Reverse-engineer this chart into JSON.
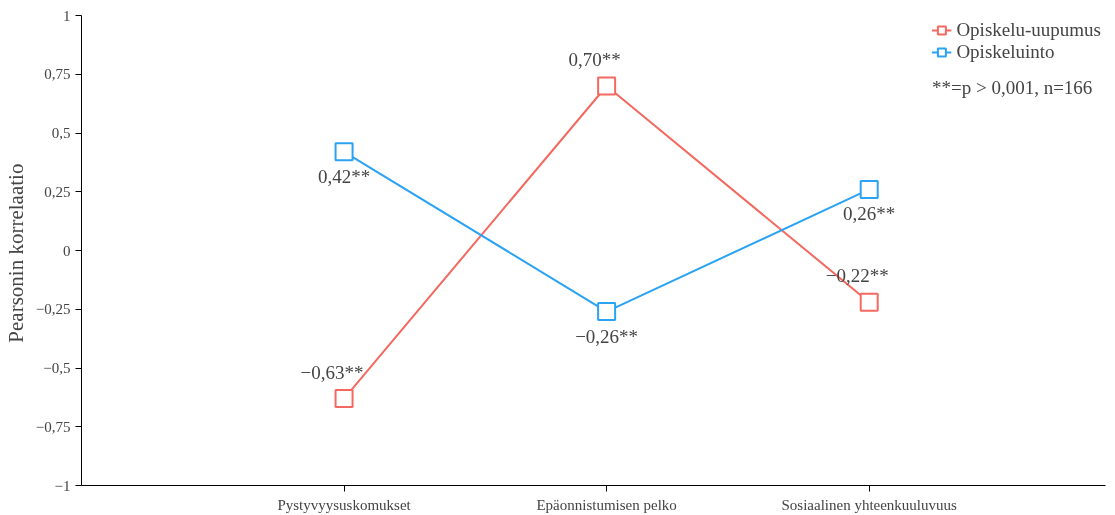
{
  "chart_data": {
    "type": "line",
    "ylabel": "Pearsonin  korrelaatio",
    "categories": [
      "Pystyvyysuskomukset",
      "Epäonnistumisen pelko",
      "Sosiaalinen yhteenkuuluvuus"
    ],
    "series": [
      {
        "name": "Opiskelu-uupumus",
        "color": "#f4695f",
        "values": [
          -0.63,
          0.7,
          -0.22
        ],
        "value_labels": [
          "−0,63**",
          "0,70**",
          "−0,22**"
        ]
      },
      {
        "name": "Opiskeluinto",
        "color": "#2aa3f2",
        "values": [
          0.42,
          -0.26,
          0.26
        ],
        "value_labels": [
          "0,42**",
          "−0,26**",
          "0,26**"
        ]
      }
    ],
    "ylim": [
      -1,
      1
    ],
    "yticks": [
      {
        "value": -1,
        "label": "−1"
      },
      {
        "value": -0.75,
        "label": "−0,75"
      },
      {
        "value": -0.5,
        "label": "−0,5"
      },
      {
        "value": -0.25,
        "label": "−0,25"
      },
      0,
      {
        "value": 0.25,
        "label": "0,25"
      },
      {
        "value": 0.5,
        "label": "0,5"
      },
      {
        "value": 0.75,
        "label": "0,75"
      },
      1
    ],
    "annotations": [
      "**=p > 0,001, n=166"
    ],
    "marker": "square",
    "line_style": "solid",
    "grid": false,
    "legend": "top right"
  }
}
